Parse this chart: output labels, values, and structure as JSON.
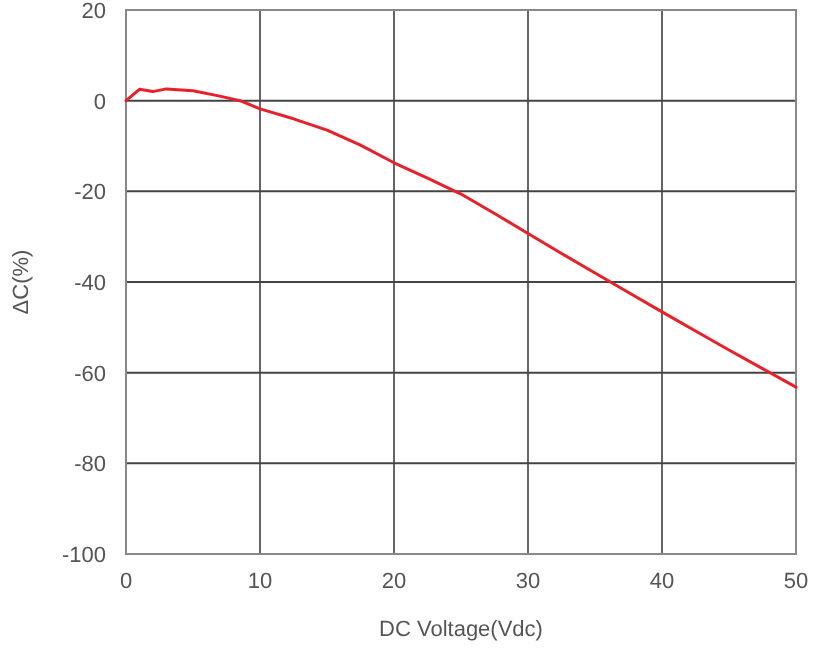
{
  "chart_data": {
    "type": "line",
    "xlabel": "DC Voltage(Vdc)",
    "ylabel": "ΔC(%)",
    "xlim": [
      0,
      50
    ],
    "xticks": [
      0,
      10,
      20,
      30,
      40,
      50
    ],
    "ylim": [
      -100,
      20
    ],
    "yticks": [
      -100,
      -80,
      -60,
      -40,
      -20,
      0,
      20
    ],
    "grid": true,
    "series": [
      {
        "color": "#e8202a",
        "x": [
          0,
          1,
          2,
          3,
          5,
          7,
          8.5,
          10,
          12.5,
          15,
          17.5,
          20,
          22.5,
          25,
          27.5,
          30,
          32.5,
          35,
          37.5,
          40,
          42.5,
          45,
          47.5,
          50
        ],
        "values": [
          0,
          2.5,
          2,
          2.6,
          2.2,
          1,
          0,
          -1.8,
          -4,
          -6.5,
          -9.8,
          -13.7,
          -17.1,
          -20.6,
          -24.9,
          -29.3,
          -33.7,
          -38,
          -42.3,
          -46.6,
          -50.8,
          -55,
          -59.1,
          -63.2
        ]
      }
    ]
  }
}
